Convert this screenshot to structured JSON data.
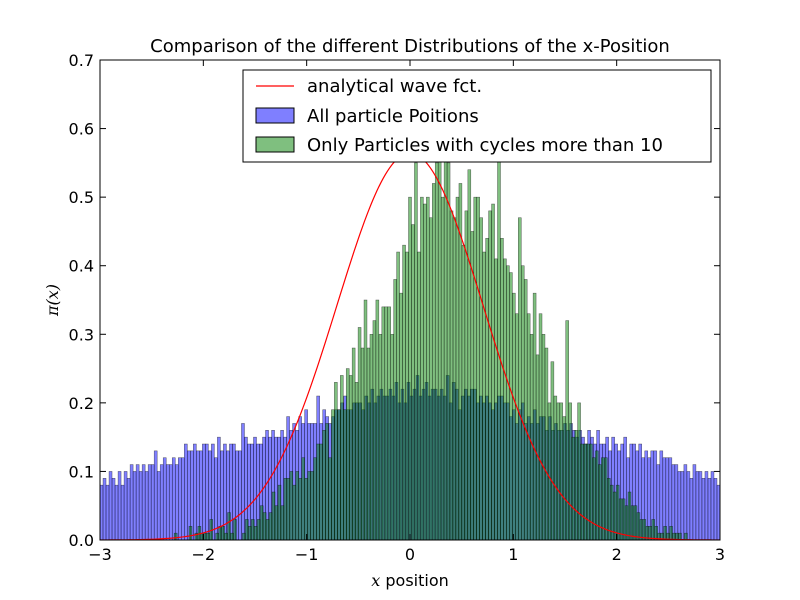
{
  "chart_data": {
    "type": "bar",
    "title": "Comparison of the different Distributions of the x-Position",
    "xlabel_math": "x",
    "xlabel_text": " position",
    "ylabel_math": "π(x)",
    "xlim": [
      -3,
      3
    ],
    "ylim": [
      0,
      0.7
    ],
    "x_ticks": [
      -3,
      -2,
      -1,
      0,
      1,
      2,
      3
    ],
    "x_tick_labels": [
      "−3",
      "−2",
      "−1",
      "0",
      "1",
      "2",
      "3"
    ],
    "y_ticks": [
      0,
      0.1,
      0.2,
      0.3,
      0.4,
      0.5,
      0.6,
      0.7
    ],
    "y_tick_labels": [
      "0.0",
      "0.1",
      "0.2",
      "0.3",
      "0.4",
      "0.5",
      "0.6",
      "0.7"
    ],
    "legend_position": "top-right",
    "bins": 200,
    "series": [
      {
        "name": "analytical wave fct.",
        "kind": "line",
        "color": "#ff0000",
        "function": "exp(-x^2)/sqrt(pi)"
      },
      {
        "name": "All particle Poitions",
        "kind": "histogram",
        "color": "#0000ff",
        "alpha": 0.5,
        "values": [
          0.08,
          0.09,
          0.08,
          0.1,
          0.09,
          0.08,
          0.1,
          0.08,
          0.1,
          0.09,
          0.11,
          0.1,
          0.11,
          0.1,
          0.11,
          0.1,
          0.11,
          0.11,
          0.13,
          0.1,
          0.11,
          0.12,
          0.11,
          0.11,
          0.12,
          0.11,
          0.12,
          0.12,
          0.14,
          0.13,
          0.13,
          0.14,
          0.13,
          0.13,
          0.14,
          0.14,
          0.13,
          0.14,
          0.12,
          0.15,
          0.13,
          0.14,
          0.13,
          0.14,
          0.14,
          0.13,
          0.13,
          0.17,
          0.15,
          0.14,
          0.14,
          0.15,
          0.14,
          0.14,
          0.15,
          0.16,
          0.15,
          0.16,
          0.15,
          0.15,
          0.16,
          0.15,
          0.18,
          0.16,
          0.17,
          0.16,
          0.18,
          0.17,
          0.19,
          0.17,
          0.17,
          0.17,
          0.21,
          0.17,
          0.19,
          0.18,
          0.17,
          0.18,
          0.19,
          0.19,
          0.2,
          0.21,
          0.19,
          0.19,
          0.2,
          0.2,
          0.2,
          0.19,
          0.21,
          0.2,
          0.22,
          0.2,
          0.21,
          0.22,
          0.21,
          0.21,
          0.22,
          0.21,
          0.23,
          0.2,
          0.22,
          0.2,
          0.23,
          0.21,
          0.22,
          0.24,
          0.21,
          0.22,
          0.23,
          0.21,
          0.22,
          0.22,
          0.21,
          0.22,
          0.21,
          0.24,
          0.2,
          0.23,
          0.22,
          0.19,
          0.21,
          0.22,
          0.21,
          0.22,
          0.22,
          0.2,
          0.21,
          0.2,
          0.21,
          0.2,
          0.19,
          0.2,
          0.21,
          0.21,
          0.2,
          0.2,
          0.18,
          0.19,
          0.17,
          0.19,
          0.2,
          0.17,
          0.18,
          0.17,
          0.19,
          0.17,
          0.18,
          0.18,
          0.16,
          0.18,
          0.16,
          0.17,
          0.16,
          0.16,
          0.17,
          0.16,
          0.17,
          0.16,
          0.15,
          0.16,
          0.15,
          0.14,
          0.16,
          0.15,
          0.14,
          0.16,
          0.14,
          0.14,
          0.15,
          0.13,
          0.15,
          0.14,
          0.13,
          0.14,
          0.15,
          0.12,
          0.14,
          0.14,
          0.13,
          0.14,
          0.12,
          0.13,
          0.12,
          0.13,
          0.13,
          0.11,
          0.13,
          0.12,
          0.12,
          0.12,
          0.11,
          0.11,
          0.1,
          0.1,
          0.11,
          0.1,
          0.09,
          0.11,
          0.1,
          0.1,
          0.09,
          0.1,
          0.09,
          0.1,
          0.09,
          0.08
        ]
      },
      {
        "name": "Only Particles with cycles more than 10",
        "kind": "histogram",
        "color": "#008000",
        "alpha": 0.5,
        "values": [
          0,
          0,
          0,
          0,
          0,
          0,
          0,
          0,
          0,
          0,
          0,
          0,
          0,
          0,
          0,
          0,
          0,
          0,
          0,
          0,
          0,
          0,
          0,
          0,
          0,
          0.01,
          0,
          0,
          0,
          0,
          0.02,
          0,
          0.01,
          0.02,
          0.01,
          0.01,
          0.01,
          0.03,
          0,
          0.01,
          0.02,
          0.02,
          0.01,
          0.04,
          0.01,
          0.03,
          0,
          0,
          0.01,
          0.03,
          0.02,
          0.03,
          0.02,
          0.03,
          0.05,
          0.04,
          0.03,
          0.04,
          0.07,
          0.05,
          0.08,
          0.05,
          0.09,
          0.09,
          0.1,
          0.08,
          0.1,
          0.09,
          0.12,
          0.09,
          0.1,
          0.1,
          0.12,
          0.14,
          0.14,
          0.16,
          0.17,
          0.12,
          0.19,
          0.23,
          0.19,
          0.24,
          0.19,
          0.25,
          0.24,
          0.28,
          0.23,
          0.31,
          0.28,
          0.35,
          0.28,
          0.3,
          0.32,
          0.35,
          0.3,
          0.34,
          0.34,
          0.34,
          0.3,
          0.38,
          0.42,
          0.36,
          0.43,
          0.42,
          0.5,
          0.46,
          0.55,
          0.42,
          0.5,
          0.49,
          0.5,
          0.47,
          0.52,
          0.55,
          0.57,
          0.5,
          0.56,
          0.55,
          0.48,
          0.47,
          0.5,
          0.52,
          0.43,
          0.48,
          0.54,
          0.45,
          0.5,
          0.5,
          0.47,
          0.42,
          0.44,
          0.48,
          0.49,
          0.41,
          0.57,
          0.44,
          0.41,
          0.4,
          0.39,
          0.36,
          0.33,
          0.47,
          0.4,
          0.38,
          0.33,
          0.3,
          0.36,
          0.27,
          0.33,
          0.3,
          0.28,
          0.2,
          0.26,
          0.21,
          0.2,
          0.2,
          0.18,
          0.32,
          0.2,
          0.15,
          0.16,
          0.2,
          0.14,
          0.14,
          0.14,
          0.14,
          0.12,
          0.13,
          0.11,
          0.12,
          0.12,
          0.09,
          0.08,
          0.07,
          0.08,
          0.06,
          0.06,
          0.05,
          0.07,
          0.05,
          0.05,
          0.04,
          0.03,
          0.03,
          0.02,
          0.02,
          0.03,
          0.02,
          0.01,
          0.01,
          0.02,
          0.01,
          0.02,
          0.01,
          0.01,
          0.01,
          0,
          0.01,
          0,
          0,
          0,
          0,
          0,
          0,
          0,
          0,
          0,
          0,
          0
        ]
      }
    ]
  }
}
